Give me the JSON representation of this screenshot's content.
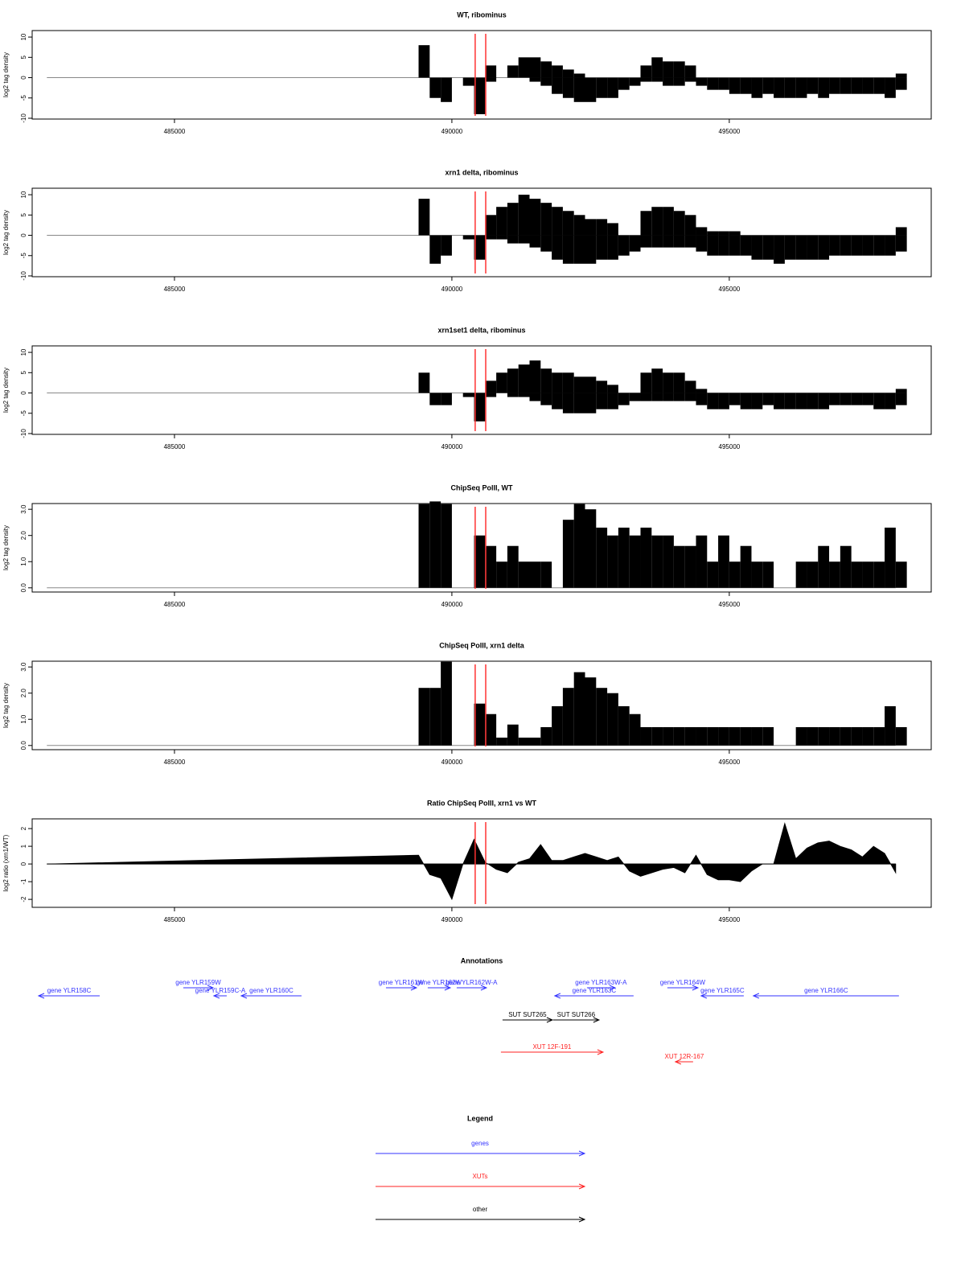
{
  "chart_data": [
    {
      "type": "bar",
      "title": "WT, ribominus",
      "ylabel": "log2 tag density",
      "xlim": [
        482435,
        498640
      ],
      "xticks": [
        485000,
        490000,
        495000
      ],
      "ylim": [
        -10.2,
        11.6
      ],
      "yticks": [
        -10,
        -5,
        0,
        5,
        10
      ],
      "markers": [
        490420,
        490610
      ],
      "marker_color": "#ff3333",
      "x": [
        482700,
        489400,
        489600,
        489800,
        490000,
        490200,
        490400,
        490600,
        490800,
        491000,
        491200,
        491400,
        491600,
        491800,
        492000,
        492200,
        492400,
        492600,
        492800,
        493000,
        493200,
        493400,
        493600,
        493800,
        494000,
        494200,
        494400,
        494600,
        494800,
        495000,
        495200,
        495400,
        495600,
        495800,
        496000,
        496200,
        496400,
        496600,
        496800,
        497000,
        497200,
        497400,
        497600,
        497800,
        498000
      ],
      "series": [
        {
          "color": "#000000",
          "values": [
            0,
            8,
            0,
            0,
            0,
            0,
            0,
            3,
            0,
            3,
            5,
            5,
            4,
            3,
            2,
            1,
            0,
            0,
            0,
            0,
            0,
            3,
            5,
            4,
            4,
            3,
            0,
            0,
            0,
            0,
            0,
            0,
            0,
            0,
            0,
            0,
            0,
            0,
            0,
            0,
            0,
            0,
            0,
            0,
            1
          ]
        },
        {
          "color": "#000000",
          "values": [
            0,
            0,
            -5,
            -6,
            0,
            -2,
            -9,
            -1,
            0,
            0,
            0,
            -1,
            -2,
            -4,
            -5,
            -6,
            -6,
            -5,
            -5,
            -3,
            -2,
            -1,
            -1,
            -2,
            -2,
            -1,
            -2,
            -3,
            -3,
            -4,
            -4,
            -5,
            -4,
            -5,
            -5,
            -5,
            -4,
            -5,
            -4,
            -4,
            -4,
            -4,
            -4,
            -5,
            -3
          ]
        }
      ]
    },
    {
      "type": "bar",
      "title": "xrn1 delta, ribominus",
      "ylabel": "log2 tag density",
      "xlim": [
        482435,
        498640
      ],
      "xticks": [
        485000,
        490000,
        495000
      ],
      "ylim": [
        -10.2,
        11.6
      ],
      "yticks": [
        -10,
        -5,
        0,
        5,
        10
      ],
      "markers": [
        490420,
        490610
      ],
      "marker_color": "#ff3333",
      "x": [
        482700,
        489400,
        489600,
        489800,
        490000,
        490200,
        490400,
        490600,
        490800,
        491000,
        491200,
        491400,
        491600,
        491800,
        492000,
        492200,
        492400,
        492600,
        492800,
        493000,
        493200,
        493400,
        493600,
        493800,
        494000,
        494200,
        494400,
        494600,
        494800,
        495000,
        495200,
        495400,
        495600,
        495800,
        496000,
        496200,
        496400,
        496600,
        496800,
        497000,
        497200,
        497400,
        497600,
        497800,
        498000
      ],
      "series": [
        {
          "color": "#000000",
          "values": [
            0,
            9,
            0,
            0,
            0,
            0,
            0,
            5,
            7,
            8,
            10,
            9,
            8,
            7,
            6,
            5,
            4,
            4,
            3,
            0,
            0,
            6,
            7,
            7,
            6,
            5,
            2,
            1,
            1,
            1,
            0,
            0,
            0,
            0,
            0,
            0,
            0,
            0,
            0,
            0,
            0,
            0,
            0,
            0,
            2
          ]
        },
        {
          "color": "#000000",
          "values": [
            0,
            0,
            -7,
            -5,
            0,
            -1,
            -6,
            -1,
            -1,
            -2,
            -2,
            -3,
            -4,
            -6,
            -7,
            -7,
            -7,
            -6,
            -6,
            -5,
            -4,
            -3,
            -3,
            -3,
            -3,
            -3,
            -4,
            -5,
            -5,
            -5,
            -5,
            -6,
            -6,
            -7,
            -6,
            -6,
            -6,
            -6,
            -5,
            -5,
            -5,
            -5,
            -5,
            -5,
            -4
          ]
        }
      ]
    },
    {
      "type": "bar",
      "title": "xrn1set1 delta, ribominus",
      "ylabel": "log2 tag density",
      "xlim": [
        482435,
        498640
      ],
      "xticks": [
        485000,
        490000,
        495000
      ],
      "ylim": [
        -10.2,
        11.6
      ],
      "yticks": [
        -10,
        -5,
        0,
        5,
        10
      ],
      "markers": [
        490420,
        490610
      ],
      "marker_color": "#ff3333",
      "x": [
        482700,
        489400,
        489600,
        489800,
        490000,
        490200,
        490400,
        490600,
        490800,
        491000,
        491200,
        491400,
        491600,
        491800,
        492000,
        492200,
        492400,
        492600,
        492800,
        493000,
        493200,
        493400,
        493600,
        493800,
        494000,
        494200,
        494400,
        494600,
        494800,
        495000,
        495200,
        495400,
        495600,
        495800,
        496000,
        496200,
        496400,
        496600,
        496800,
        497000,
        497200,
        497400,
        497600,
        497800,
        498000
      ],
      "series": [
        {
          "color": "#000000",
          "values": [
            0,
            5,
            0,
            0,
            0,
            0,
            0,
            3,
            5,
            6,
            7,
            8,
            6,
            5,
            5,
            4,
            4,
            3,
            2,
            0,
            0,
            5,
            6,
            5,
            5,
            3,
            1,
            0,
            0,
            0,
            0,
            0,
            0,
            0,
            0,
            0,
            0,
            0,
            0,
            0,
            0,
            0,
            0,
            0,
            1
          ]
        },
        {
          "color": "#000000",
          "values": [
            0,
            0,
            -3,
            -3,
            0,
            -1,
            -7,
            -1,
            0,
            -1,
            -1,
            -2,
            -3,
            -4,
            -5,
            -5,
            -5,
            -4,
            -4,
            -3,
            -2,
            -2,
            -2,
            -2,
            -2,
            -2,
            -3,
            -4,
            -4,
            -3,
            -4,
            -4,
            -3,
            -4,
            -4,
            -4,
            -4,
            -4,
            -3,
            -3,
            -3,
            -3,
            -4,
            -4,
            -3
          ]
        }
      ]
    },
    {
      "type": "bar",
      "title": "ChipSeq PolII, WT",
      "ylabel": "log2 tag density",
      "xlim": [
        482435,
        498640
      ],
      "xticks": [
        485000,
        490000,
        495000
      ],
      "ylim": [
        -0.16,
        3.22
      ],
      "yticks": [
        {
          "value": 0,
          "label": "0.0"
        },
        {
          "value": 1,
          "label": "1.0"
        },
        {
          "value": 2,
          "label": "2.0"
        },
        {
          "value": 3,
          "label": "3.0"
        }
      ],
      "markers": [
        490420,
        490610
      ],
      "marker_color": "#ff3333",
      "x": [
        482700,
        489400,
        489600,
        489800,
        490000,
        490200,
        490400,
        490600,
        490800,
        491000,
        491200,
        491400,
        491600,
        491800,
        492000,
        492200,
        492400,
        492600,
        492800,
        493000,
        493200,
        493400,
        493600,
        493800,
        494000,
        494200,
        494400,
        494600,
        494800,
        495000,
        495200,
        495400,
        495600,
        495800,
        496000,
        496200,
        496400,
        496600,
        496800,
        497000,
        497200,
        497400,
        497600,
        497800,
        498000
      ],
      "series": [
        {
          "color": "#000000",
          "values": [
            0,
            3.2,
            3.3,
            3.2,
            0,
            0,
            2,
            1.6,
            1,
            1.6,
            1,
            1,
            1,
            0,
            2.6,
            3.2,
            3,
            2.3,
            2,
            2.3,
            2,
            2.3,
            2,
            2,
            1.6,
            1.6,
            2,
            1,
            2,
            1,
            1.6,
            1,
            1,
            0,
            0,
            1,
            1,
            1.6,
            1,
            1.6,
            1,
            1,
            1,
            2.3,
            1
          ]
        }
      ]
    },
    {
      "type": "bar",
      "title": "ChipSeq PolII, xrn1 delta",
      "ylabel": "log2 tag density",
      "xlim": [
        482435,
        498640
      ],
      "xticks": [
        485000,
        490000,
        495000
      ],
      "ylim": [
        -0.16,
        3.22
      ],
      "yticks": [
        {
          "value": 0,
          "label": "0.0"
        },
        {
          "value": 1,
          "label": "1.0"
        },
        {
          "value": 2,
          "label": "2.0"
        },
        {
          "value": 3,
          "label": "3.0"
        }
      ],
      "markers": [
        490420,
        490610
      ],
      "marker_color": "#ff3333",
      "x": [
        482700,
        489400,
        489600,
        489800,
        490000,
        490200,
        490400,
        490600,
        490800,
        491000,
        491200,
        491400,
        491600,
        491800,
        492000,
        492200,
        492400,
        492600,
        492800,
        493000,
        493200,
        493400,
        493600,
        493800,
        494000,
        494200,
        494400,
        494600,
        494800,
        495000,
        495200,
        495400,
        495600,
        495800,
        496000,
        496200,
        496400,
        496600,
        496800,
        497000,
        497200,
        497400,
        497600,
        497800,
        498000
      ],
      "series": [
        {
          "color": "#000000",
          "values": [
            0,
            2.2,
            2.2,
            3.2,
            0,
            0,
            1.6,
            1.2,
            0.3,
            0.8,
            0.3,
            0.3,
            0.7,
            1.5,
            2.2,
            2.8,
            2.6,
            2.2,
            2,
            1.5,
            1.2,
            0.7,
            0.7,
            0.7,
            0.7,
            0.7,
            0.7,
            0.7,
            0.7,
            0.7,
            0.7,
            0.7,
            0.7,
            0,
            0,
            0.7,
            0.7,
            0.7,
            0.7,
            0.7,
            0.7,
            0.7,
            0.7,
            1.5,
            0.7
          ]
        }
      ]
    },
    {
      "type": "area",
      "title": "Ratio ChipSeq PolII, xrn1 vs WT",
      "ylabel": "log2 ratio (xrn1/WT)",
      "xlim": [
        482435,
        498640
      ],
      "xticks": [
        485000,
        490000,
        495000
      ],
      "ylim": [
        -2.45,
        2.55
      ],
      "yticks": [
        -2,
        -1,
        0,
        1,
        2
      ],
      "markers": [
        490420,
        490610
      ],
      "marker_color": "#ff3333",
      "x": [
        482700,
        489400,
        489600,
        489800,
        490000,
        490200,
        490400,
        490600,
        490800,
        491000,
        491200,
        491400,
        491600,
        491800,
        492000,
        492200,
        492400,
        492600,
        492800,
        493000,
        493200,
        493400,
        493600,
        493800,
        494000,
        494200,
        494400,
        494600,
        494800,
        495000,
        495200,
        495400,
        495600,
        495800,
        496000,
        496200,
        496400,
        496600,
        496800,
        497000,
        497200,
        497400,
        497600,
        497800,
        498000
      ],
      "series": [
        {
          "color": "#000000",
          "values": [
            0,
            0.5,
            -0.6,
            -0.8,
            -2,
            0,
            1.4,
            0.1,
            -0.3,
            -0.5,
            0.1,
            0.3,
            1.1,
            0.2,
            0.2,
            0.4,
            0.6,
            0.4,
            0.2,
            0.4,
            -0.4,
            -0.7,
            -0.5,
            -0.3,
            -0.2,
            -0.5,
            0.5,
            -0.6,
            -0.9,
            -0.9,
            -1,
            -0.4,
            0,
            0,
            2.3,
            0.3,
            0.9,
            1.2,
            1.3,
            1,
            0.8,
            0.4,
            1,
            0.6,
            -0.5
          ]
        }
      ]
    },
    {
      "type": "annotation",
      "title": "Annotations",
      "xlim": [
        482435,
        498640
      ],
      "tracks": [
        {
          "color": "#3333ff",
          "features": [
            {
              "label": "gene YLR158C",
              "start": 482551,
              "end": 483652,
              "strand": "-"
            },
            {
              "label": "gene YLR159W",
              "start": 485159,
              "end": 485696,
              "strand": "+"
            },
            {
              "label": "gene YLR159C-A",
              "start": 485710,
              "end": 485942,
              "strand": "-"
            },
            {
              "label": "gene YLR160C",
              "start": 486203,
              "end": 487290,
              "strand": "-"
            },
            {
              "label": "gene YLR161W",
              "start": 488812,
              "end": 489362,
              "strand": "+"
            },
            {
              "label": "gene YLR162W",
              "start": 489565,
              "end": 489971,
              "strand": "+"
            },
            {
              "label": "gene YLR162W-A",
              "start": 490087,
              "end": 490623,
              "strand": "+"
            },
            {
              "label": "gene YLR163C",
              "start": 491855,
              "end": 493275,
              "strand": "-"
            },
            {
              "label": "gene YLR163W-A",
              "start": 492435,
              "end": 492942,
              "strand": "+"
            },
            {
              "label": "gene YLR164W",
              "start": 493884,
              "end": 494435,
              "strand": "+"
            },
            {
              "label": "gene YLR165C",
              "start": 494493,
              "end": 495261,
              "strand": "-"
            },
            {
              "label": "gene YLR166C",
              "start": 495435,
              "end": 498058,
              "strand": "-"
            }
          ]
        },
        {
          "color": "#000000",
          "features": [
            {
              "label": "SUT SUT265",
              "start": 490913,
              "end": 491812,
              "strand": "+"
            },
            {
              "label": "SUT SUT266",
              "start": 491826,
              "end": 492652,
              "strand": "+"
            }
          ]
        },
        {
          "color": "#ff2222",
          "features": [
            {
              "label": "XUT 12F-191",
              "start": 490884,
              "end": 492725,
              "strand": "+"
            },
            {
              "label": "XUT 12R-167",
              "start": 494029,
              "end": 494348,
              "strand": "-"
            }
          ]
        }
      ]
    }
  ],
  "legend": {
    "title": "Legend",
    "items": [
      {
        "label": "genes",
        "color": "#3333ff"
      },
      {
        "label": "XUTs",
        "color": "#ff2222"
      },
      {
        "label": "other",
        "color": "#000000"
      }
    ]
  }
}
